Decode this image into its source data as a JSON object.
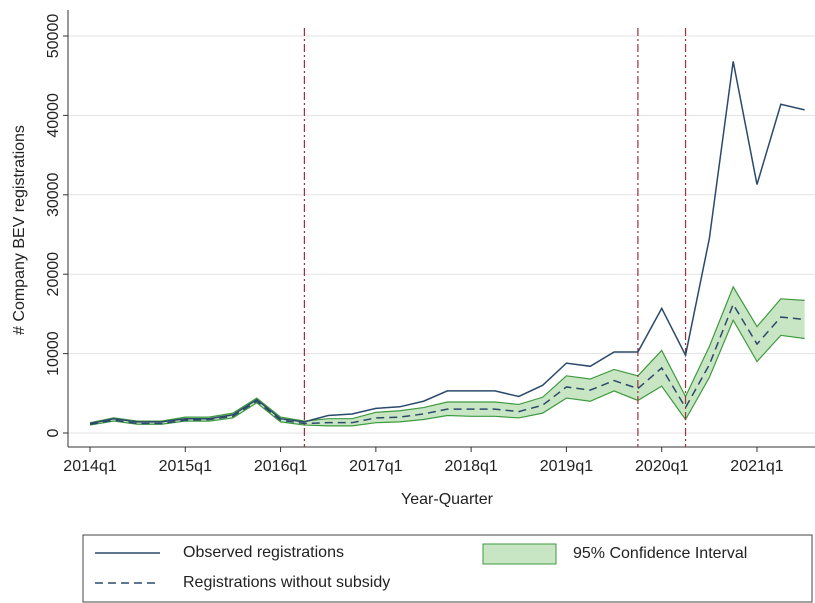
{
  "chart_data": {
    "type": "line",
    "x_label": "Year-Quarter",
    "y_label": "# Company BEV registrations",
    "categories": [
      "2014q1",
      null,
      null,
      null,
      "2015q1",
      null,
      null,
      null,
      "2016q1",
      null,
      null,
      null,
      "2017q1",
      null,
      null,
      null,
      "2018q1",
      null,
      null,
      null,
      "2019q1",
      null,
      null,
      null,
      "2020q1",
      null,
      null,
      null,
      "2021q1",
      null,
      null
    ],
    "series": [
      {
        "name": "Observed registrations",
        "color": "#2b4a6b",
        "dash": "solid",
        "values": [
          1200,
          1800,
          1400,
          1400,
          1800,
          1800,
          2300,
          4200,
          1800,
          1400,
          2200,
          2400,
          3100,
          3300,
          4000,
          5300,
          5300,
          5300,
          4600,
          6000,
          8800,
          8400,
          10200,
          10200,
          15700,
          9800,
          24500,
          46800,
          31300,
          41400,
          40700
        ]
      },
      {
        "name": "Registrations without subsidy",
        "color": "#2b4a6b",
        "dash": "dashed",
        "values": [
          1100,
          1600,
          1200,
          1200,
          1600,
          1700,
          2100,
          4000,
          1600,
          1200,
          1300,
          1300,
          1900,
          2000,
          2400,
          3000,
          3000,
          3000,
          2700,
          3500,
          5800,
          5400,
          6600,
          5600,
          8200,
          3200,
          8600,
          16200,
          11200,
          14600,
          14300
        ]
      }
    ],
    "band": {
      "name": "95% Confidence Interval",
      "color": "#c9e6c4",
      "edge": "#3e9a3e",
      "lower": [
        1000,
        1500,
        1100,
        1100,
        1500,
        1500,
        1900,
        3800,
        1400,
        1000,
        900,
        900,
        1300,
        1400,
        1700,
        2200,
        2100,
        2100,
        1900,
        2500,
        4400,
        4000,
        5300,
        4100,
        5900,
        1700,
        7000,
        14200,
        9000,
        12300,
        11900
      ],
      "upper": [
        1300,
        1900,
        1500,
        1500,
        2000,
        2000,
        2500,
        4400,
        2000,
        1500,
        1800,
        1800,
        2600,
        2800,
        3200,
        3900,
        3900,
        3900,
        3600,
        4500,
        7200,
        6800,
        8000,
        7200,
        10400,
        4600,
        10900,
        18400,
        13400,
        16900,
        16700
      ]
    },
    "vlines": [
      9,
      23,
      25
    ],
    "vline_color": "#a0303a",
    "ylim": [
      0,
      50000
    ],
    "yticks": [
      0,
      10000,
      20000,
      30000,
      40000,
      50000
    ],
    "grid": true
  }
}
